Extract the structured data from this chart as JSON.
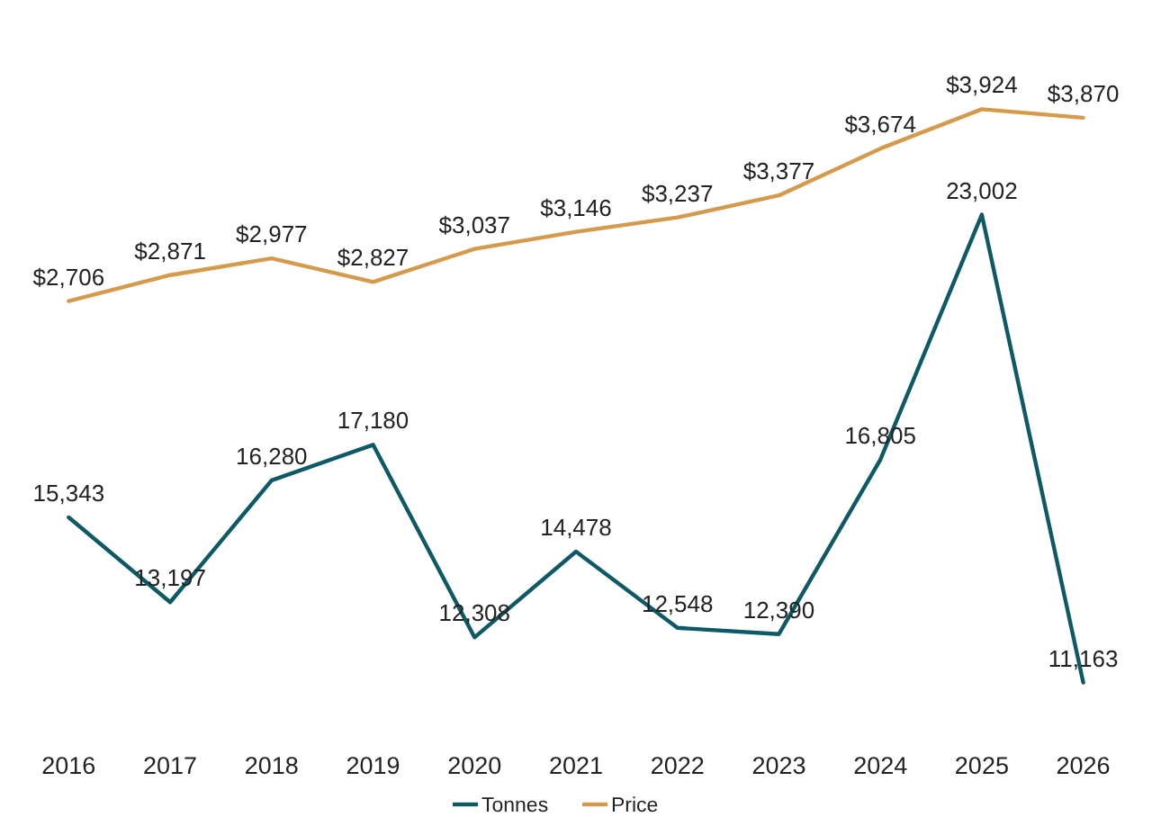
{
  "chart_data": {
    "type": "line",
    "categories": [
      "2016",
      "2017",
      "2018",
      "2019",
      "2020",
      "2021",
      "2022",
      "2023",
      "2024",
      "2025",
      "2026"
    ],
    "series": [
      {
        "name": "Tonnes",
        "color": "#0d5a66",
        "values": [
          15343,
          13197,
          16280,
          17180,
          12308,
          14478,
          12548,
          12390,
          16805,
          23002,
          11163
        ],
        "value_labels": [
          "15,343",
          "13,197",
          "16,280",
          "17,180",
          "12,308",
          "14,478",
          "12,548",
          "12,390",
          "16,805",
          "23,002",
          "11,163"
        ]
      },
      {
        "name": "Price",
        "color": "#d59a4b",
        "axis": "y2",
        "values": [
          2706,
          2871,
          2977,
          2827,
          3037,
          3146,
          3237,
          3377,
          3674,
          3924,
          3870
        ],
        "value_labels": [
          "$2,706",
          "$2,871",
          "$2,977",
          "$2,827",
          "$3,037",
          "$3,146",
          "$3,237",
          "$3,377",
          "$3,674",
          "$3,924",
          "$3,870"
        ]
      }
    ],
    "tick_labels": "x",
    "legend": "bottom",
    "marker": "none",
    "line_style": "solid"
  }
}
